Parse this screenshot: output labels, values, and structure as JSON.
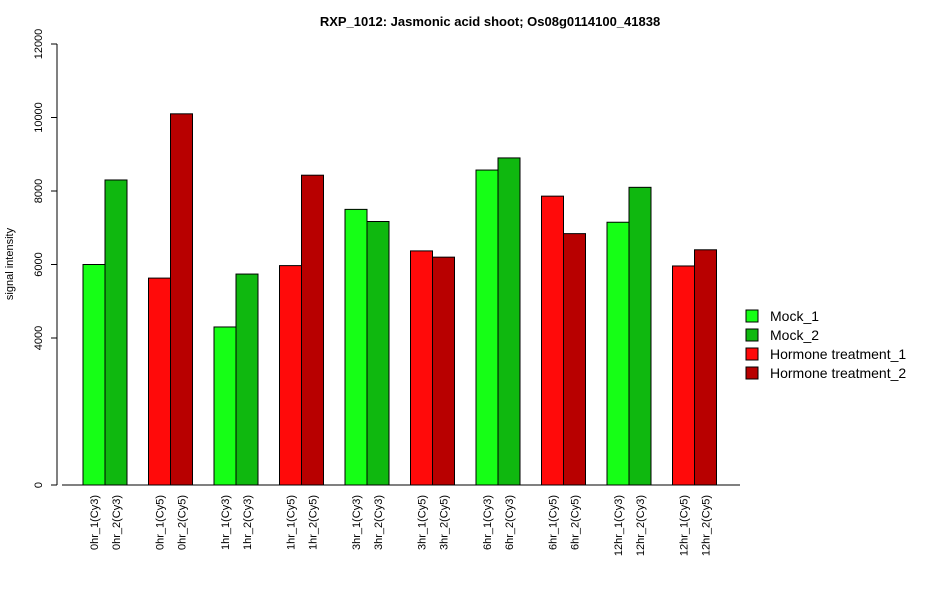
{
  "chart_data": {
    "type": "bar",
    "title": "RXP_1012: Jasmonic acid shoot; Os08g0114100_41838",
    "xlabel": "",
    "ylabel": "signal intensity",
    "ylim": [
      0,
      12000
    ],
    "yticks": [
      0,
      4000,
      6000,
      8000,
      10000,
      12000
    ],
    "y_tick_labels": [
      "0",
      "4000",
      "6000",
      "8000",
      "10000",
      "12000"
    ],
    "grid": false,
    "legend_position": "right",
    "legend": [
      {
        "name": "Mock_1",
        "color": "#16FF16"
      },
      {
        "name": "Mock_2",
        "color": "#0FB80F"
      },
      {
        "name": "Hormone treatment_1",
        "color": "#FF0A0A"
      },
      {
        "name": "Hormone treatment_2",
        "color": "#B80000"
      }
    ],
    "groups": [
      {
        "bars": [
          {
            "label": "0hr_1(Cy3)",
            "value": 6000,
            "series": "Mock_1"
          },
          {
            "label": "0hr_2(Cy3)",
            "value": 8300,
            "series": "Mock_2"
          }
        ]
      },
      {
        "bars": [
          {
            "label": "0hr_1(Cy5)",
            "value": 5630,
            "series": "Hormone treatment_1"
          },
          {
            "label": "0hr_2(Cy5)",
            "value": 10100,
            "series": "Hormone treatment_2"
          }
        ]
      },
      {
        "bars": [
          {
            "label": "1hr_1(Cy3)",
            "value": 4300,
            "series": "Mock_1"
          },
          {
            "label": "1hr_2(Cy3)",
            "value": 5740,
            "series": "Mock_2"
          }
        ]
      },
      {
        "bars": [
          {
            "label": "1hr_1(Cy5)",
            "value": 5970,
            "series": "Hormone treatment_1"
          },
          {
            "label": "1hr_2(Cy5)",
            "value": 8430,
            "series": "Hormone treatment_2"
          }
        ]
      },
      {
        "bars": [
          {
            "label": "3hr_1(Cy3)",
            "value": 7500,
            "series": "Mock_1"
          },
          {
            "label": "3hr_2(Cy3)",
            "value": 7170,
            "series": "Mock_2"
          }
        ]
      },
      {
        "bars": [
          {
            "label": "3hr_1(Cy5)",
            "value": 6370,
            "series": "Hormone treatment_1"
          },
          {
            "label": "3hr_2(Cy5)",
            "value": 6200,
            "series": "Hormone treatment_2"
          }
        ]
      },
      {
        "bars": [
          {
            "label": "6hr_1(Cy3)",
            "value": 8570,
            "series": "Mock_1"
          },
          {
            "label": "6hr_2(Cy3)",
            "value": 8900,
            "series": "Mock_2"
          }
        ]
      },
      {
        "bars": [
          {
            "label": "6hr_1(Cy5)",
            "value": 7860,
            "series": "Hormone treatment_1"
          },
          {
            "label": "6hr_2(Cy5)",
            "value": 6840,
            "series": "Hormone treatment_2"
          }
        ]
      },
      {
        "bars": [
          {
            "label": "12hr_1(Cy3)",
            "value": 7150,
            "series": "Mock_1"
          },
          {
            "label": "12hr_2(Cy3)",
            "value": 8100,
            "series": "Mock_2"
          }
        ]
      },
      {
        "bars": [
          {
            "label": "12hr_1(Cy5)",
            "value": 5960,
            "series": "Hormone treatment_1"
          },
          {
            "label": "12hr_2(Cy5)",
            "value": 6400,
            "series": "Hormone treatment_2"
          }
        ]
      }
    ]
  }
}
